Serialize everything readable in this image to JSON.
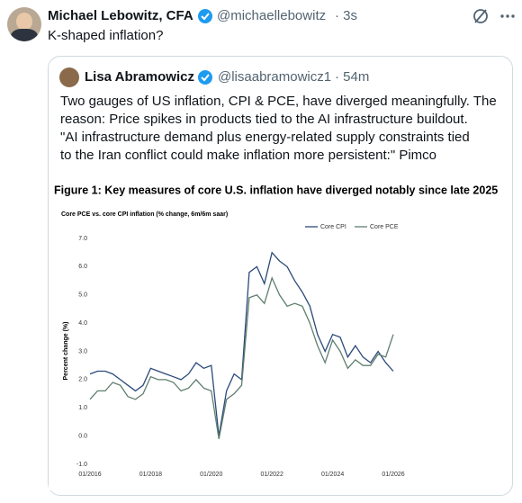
{
  "tweet": {
    "author": "Michael Lebowitz, CFA",
    "handle": "@michaellebowitz",
    "time": "· 3s",
    "text": "K-shaped inflation?"
  },
  "quote": {
    "author": "Lisa Abramowicz",
    "handle": "@lisaabramowicz1",
    "time": "· 54m",
    "lines": [
      "Two gauges of US inflation, CPI & PCE, have diverged meaningfully. The",
      "reason: Price spikes in products tied to the AI infrastructure buildout.",
      "\"AI infrastructure demand plus energy-related supply constraints tied",
      "to the Iran conflict could make inflation more persistent:\" Pimco"
    ]
  },
  "figure_title": "Figure 1: Key measures of core U.S. inflation have diverged notably since late 2025",
  "chart_data": {
    "type": "line",
    "title": "Core PCE vs. core CPI inflation (% change, 6m/6m saar)",
    "y_label": "Percent change (%)",
    "x": [
      "01/2016",
      "04/2016",
      "07/2016",
      "10/2016",
      "01/2017",
      "04/2017",
      "07/2017",
      "10/2017",
      "01/2018",
      "04/2018",
      "07/2018",
      "10/2018",
      "01/2019",
      "04/2019",
      "07/2019",
      "10/2019",
      "01/2020",
      "04/2020",
      "07/2020",
      "10/2020",
      "01/2021",
      "04/2021",
      "07/2021",
      "10/2021",
      "01/2022",
      "04/2022",
      "07/2022",
      "10/2022",
      "01/2023",
      "04/2023",
      "07/2023",
      "10/2023",
      "01/2024",
      "04/2024",
      "07/2024",
      "10/2024",
      "01/2025",
      "04/2025",
      "07/2025",
      "10/2025",
      "01/2026"
    ],
    "series": [
      {
        "name": "Core CPI",
        "color": "#2b4a7a",
        "values": [
          2.2,
          2.3,
          2.3,
          2.2,
          2.0,
          1.8,
          1.6,
          1.8,
          2.4,
          2.3,
          2.2,
          2.1,
          2.0,
          2.2,
          2.6,
          2.4,
          2.5,
          0.0,
          1.6,
          2.2,
          2.0,
          5.8,
          6.0,
          5.4,
          6.5,
          6.2,
          6.0,
          5.5,
          5.1,
          4.6,
          3.6,
          3.0,
          3.6,
          3.5,
          2.8,
          3.2,
          2.8,
          2.6,
          3.0,
          2.6,
          2.3
        ]
      },
      {
        "name": "Core PCE",
        "color": "#5f7f6e",
        "values": [
          1.3,
          1.6,
          1.6,
          1.9,
          1.8,
          1.4,
          1.3,
          1.5,
          2.1,
          2.0,
          2.0,
          1.9,
          1.6,
          1.7,
          2.0,
          1.7,
          1.6,
          -0.1,
          1.3,
          1.5,
          1.8,
          4.9,
          5.0,
          4.7,
          5.6,
          5.0,
          4.6,
          4.7,
          4.6,
          4.0,
          3.2,
          2.6,
          3.4,
          3.0,
          2.4,
          2.7,
          2.5,
          2.5,
          2.9,
          2.8,
          3.6
        ]
      }
    ],
    "xticks": [
      "01/2016",
      "01/2018",
      "01/2020",
      "01/2022",
      "01/2024",
      "01/2026"
    ],
    "ylim": [
      -1,
      7
    ],
    "yticks": [
      {
        "value": -1,
        "label": "-1.0"
      },
      {
        "value": 0,
        "label": "0.0"
      },
      {
        "value": 1,
        "label": "1.0"
      },
      {
        "value": 2,
        "label": "2.0"
      },
      {
        "value": 3,
        "label": "3.0"
      },
      {
        "value": 4,
        "label": "4.0"
      },
      {
        "value": 5,
        "label": "5.0"
      },
      {
        "value": 6,
        "label": "6.0"
      },
      {
        "value": 7,
        "label": "7.0"
      }
    ],
    "grid": false
  }
}
